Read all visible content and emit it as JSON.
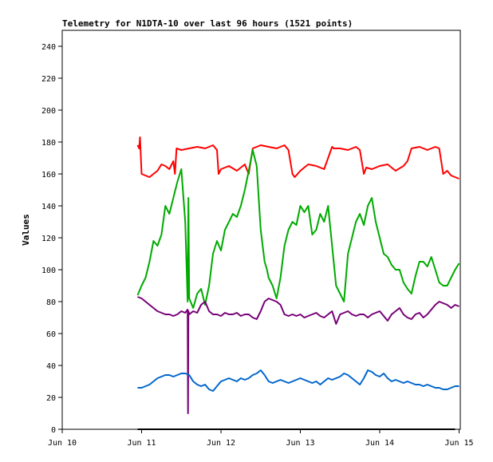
{
  "chart_data": {
    "type": "line",
    "title": "Telemetry for N1DTA-10 over last 96 hours (1521 points)",
    "xlabel": "",
    "ylabel": "Values",
    "xlim": [
      "Jun 10",
      "Jun 15"
    ],
    "ylim": [
      0,
      250
    ],
    "x_ticks": [
      "Jun 10",
      "Jun 11",
      "Jun 12",
      "Jun 13",
      "Jun 14",
      "Jun 15"
    ],
    "y_ticks": [
      0,
      20,
      40,
      60,
      80,
      100,
      120,
      140,
      160,
      180,
      200,
      220,
      240
    ],
    "grid": false,
    "legend": "none",
    "x_unit": "days after Jun 10 00:00",
    "series": [
      {
        "color": "#ff0000",
        "x": [
          0.95,
          0.97,
          0.98,
          1.0,
          1.1,
          1.2,
          1.25,
          1.3,
          1.35,
          1.4,
          1.42,
          1.44,
          1.5,
          1.6,
          1.7,
          1.8,
          1.9,
          1.95,
          1.97,
          2.0,
          2.1,
          2.2,
          2.3,
          2.35,
          2.4,
          2.5,
          2.6,
          2.7,
          2.8,
          2.85,
          2.9,
          2.93,
          3.0,
          3.1,
          3.2,
          3.3,
          3.4,
          3.42,
          3.5,
          3.6,
          3.7,
          3.75,
          3.8,
          3.83,
          3.9,
          4.0,
          4.1,
          4.2,
          4.3,
          4.35,
          4.4,
          4.5,
          4.6,
          4.7,
          4.75,
          4.8,
          4.85,
          4.9,
          5.0
        ],
        "y": [
          178,
          176,
          183,
          160,
          158,
          162,
          166,
          165,
          163,
          168,
          160,
          176,
          175,
          176,
          177,
          176,
          178,
          175,
          160,
          163,
          165,
          162,
          166,
          160,
          176,
          178,
          177,
          176,
          178,
          175,
          160,
          158,
          162,
          166,
          165,
          163,
          177,
          176,
          176,
          175,
          177,
          175,
          160,
          164,
          163,
          165,
          166,
          162,
          165,
          168,
          176,
          177,
          175,
          177,
          176,
          160,
          162,
          159,
          157
        ]
      },
      {
        "color": "#00aa00",
        "x": [
          0.95,
          1.0,
          1.05,
          1.1,
          1.15,
          1.2,
          1.25,
          1.3,
          1.35,
          1.4,
          1.45,
          1.5,
          1.55,
          1.58,
          1.59,
          1.6,
          1.65,
          1.7,
          1.75,
          1.8,
          1.85,
          1.9,
          1.95,
          2.0,
          2.05,
          2.1,
          2.15,
          2.2,
          2.25,
          2.3,
          2.35,
          2.4,
          2.45,
          2.5,
          2.55,
          2.58,
          2.6,
          2.65,
          2.7,
          2.75,
          2.8,
          2.85,
          2.9,
          2.95,
          3.0,
          3.05,
          3.1,
          3.15,
          3.2,
          3.25,
          3.3,
          3.35,
          3.4,
          3.45,
          3.5,
          3.55,
          3.6,
          3.65,
          3.7,
          3.75,
          3.8,
          3.85,
          3.9,
          3.95,
          4.0,
          4.05,
          4.1,
          4.15,
          4.2,
          4.25,
          4.3,
          4.35,
          4.4,
          4.45,
          4.5,
          4.55,
          4.6,
          4.65,
          4.7,
          4.75,
          4.8,
          4.85,
          4.9,
          4.95,
          5.0
        ],
        "y": [
          84,
          90,
          95,
          105,
          118,
          115,
          122,
          140,
          135,
          145,
          155,
          163,
          130,
          80,
          145,
          82,
          76,
          85,
          88,
          78,
          90,
          110,
          118,
          112,
          125,
          130,
          135,
          133,
          140,
          150,
          162,
          175,
          165,
          125,
          105,
          100,
          95,
          90,
          82,
          95,
          115,
          125,
          130,
          128,
          140,
          136,
          140,
          122,
          125,
          135,
          130,
          140,
          115,
          90,
          85,
          80,
          110,
          120,
          130,
          135,
          128,
          140,
          145,
          130,
          120,
          110,
          108,
          103,
          100,
          100,
          92,
          88,
          85,
          96,
          105,
          105,
          102,
          108,
          100,
          92,
          90,
          90,
          95,
          100,
          104
        ]
      },
      {
        "color": "#770077",
        "x": [
          0.95,
          1.0,
          1.05,
          1.1,
          1.15,
          1.2,
          1.25,
          1.3,
          1.35,
          1.4,
          1.45,
          1.5,
          1.55,
          1.58,
          1.585,
          1.59,
          1.6,
          1.65,
          1.7,
          1.75,
          1.8,
          1.85,
          1.9,
          1.95,
          2.0,
          2.05,
          2.1,
          2.15,
          2.2,
          2.25,
          2.3,
          2.35,
          2.4,
          2.45,
          2.5,
          2.55,
          2.6,
          2.65,
          2.7,
          2.75,
          2.8,
          2.85,
          2.9,
          2.95,
          3.0,
          3.05,
          3.1,
          3.15,
          3.2,
          3.25,
          3.3,
          3.35,
          3.4,
          3.45,
          3.5,
          3.55,
          3.6,
          3.65,
          3.7,
          3.75,
          3.8,
          3.85,
          3.9,
          3.95,
          4.0,
          4.05,
          4.1,
          4.15,
          4.2,
          4.25,
          4.3,
          4.35,
          4.4,
          4.45,
          4.5,
          4.55,
          4.6,
          4.65,
          4.7,
          4.75,
          4.8,
          4.85,
          4.9,
          4.95,
          5.0
        ],
        "y": [
          83,
          82,
          80,
          78,
          76,
          74,
          73,
          72,
          72,
          71,
          72,
          74,
          73,
          75,
          10,
          74,
          72,
          74,
          73,
          78,
          80,
          74,
          72,
          72,
          71,
          73,
          72,
          72,
          73,
          71,
          72,
          72,
          70,
          69,
          74,
          80,
          82,
          81,
          80,
          78,
          72,
          71,
          72,
          71,
          72,
          70,
          71,
          72,
          73,
          71,
          70,
          72,
          74,
          66,
          72,
          73,
          74,
          72,
          71,
          72,
          72,
          70,
          72,
          73,
          74,
          71,
          68,
          72,
          74,
          76,
          72,
          70,
          69,
          72,
          73,
          70,
          72,
          75,
          78,
          80,
          79,
          78,
          76,
          78,
          77
        ]
      },
      {
        "color": "#0066cc",
        "x": [
          0.95,
          1.0,
          1.05,
          1.1,
          1.15,
          1.2,
          1.25,
          1.3,
          1.35,
          1.4,
          1.45,
          1.5,
          1.55,
          1.6,
          1.65,
          1.7,
          1.75,
          1.8,
          1.85,
          1.9,
          1.95,
          2.0,
          2.05,
          2.1,
          2.15,
          2.2,
          2.25,
          2.3,
          2.35,
          2.4,
          2.45,
          2.5,
          2.55,
          2.6,
          2.65,
          2.7,
          2.75,
          2.8,
          2.85,
          2.9,
          2.95,
          3.0,
          3.05,
          3.1,
          3.15,
          3.2,
          3.25,
          3.3,
          3.35,
          3.4,
          3.45,
          3.5,
          3.55,
          3.6,
          3.65,
          3.7,
          3.75,
          3.8,
          3.85,
          3.9,
          3.95,
          4.0,
          4.05,
          4.1,
          4.15,
          4.2,
          4.25,
          4.3,
          4.35,
          4.4,
          4.45,
          4.5,
          4.55,
          4.6,
          4.65,
          4.7,
          4.75,
          4.8,
          4.85,
          4.9,
          4.95,
          5.0
        ],
        "y": [
          26,
          26,
          27,
          28,
          30,
          32,
          33,
          34,
          34,
          33,
          34,
          35,
          35,
          34,
          30,
          28,
          27,
          28,
          25,
          24,
          27,
          30,
          31,
          32,
          31,
          30,
          32,
          31,
          32,
          34,
          35,
          37,
          34,
          30,
          29,
          30,
          31,
          30,
          29,
          30,
          31,
          32,
          31,
          30,
          29,
          30,
          28,
          30,
          32,
          31,
          32,
          33,
          35,
          34,
          32,
          30,
          28,
          32,
          37,
          36,
          34,
          33,
          35,
          32,
          30,
          31,
          30,
          29,
          30,
          29,
          28,
          28,
          27,
          28,
          27,
          26,
          26,
          25,
          25,
          26,
          27,
          27
        ]
      }
    ]
  }
}
